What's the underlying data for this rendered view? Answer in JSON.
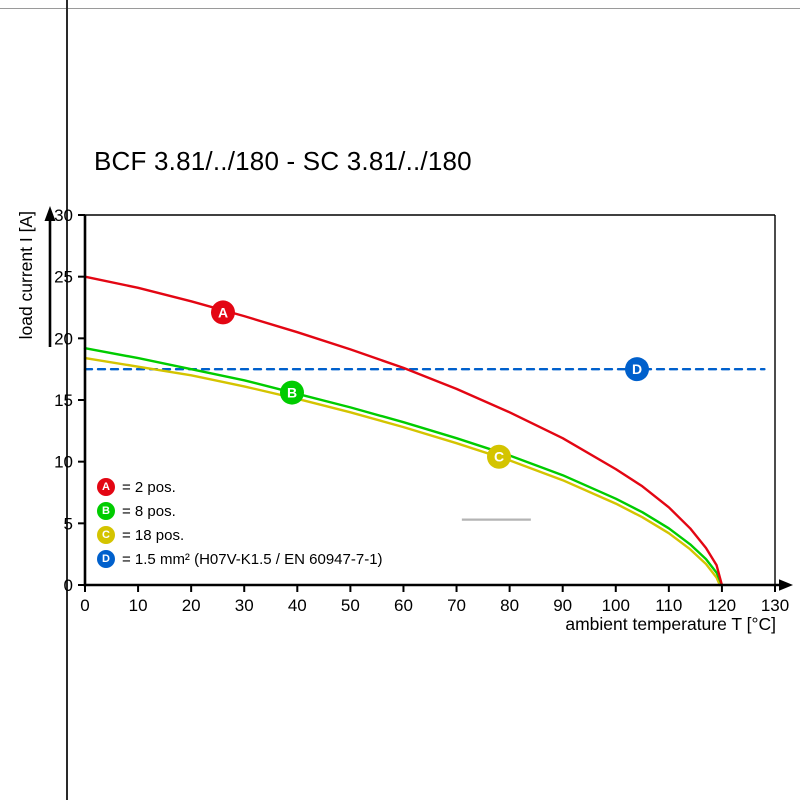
{
  "chart_data": {
    "type": "line",
    "title": "BCF 3.81/../180 - SC 3.81/../180",
    "xlabel": "ambient temperature T [°C]",
    "ylabel": "load current I [A]",
    "xlim": [
      0,
      130
    ],
    "ylim": [
      0,
      30
    ],
    "xticks": [
      0,
      10,
      20,
      30,
      40,
      50,
      60,
      70,
      80,
      90,
      100,
      110,
      120,
      130
    ],
    "yticks": [
      0,
      5,
      10,
      15,
      20,
      25,
      30
    ],
    "grid": false,
    "legend_position": "lower-left",
    "series": [
      {
        "name": "A",
        "legend_label": "= 2 pos.",
        "color": "#e30613",
        "line_style": "solid",
        "marker": {
          "t": 26,
          "i": 22.1
        },
        "points": [
          [
            0,
            25.0
          ],
          [
            10,
            24.1
          ],
          [
            20,
            23.0
          ],
          [
            30,
            21.8
          ],
          [
            40,
            20.5
          ],
          [
            50,
            19.1
          ],
          [
            60,
            17.6
          ],
          [
            70,
            15.9
          ],
          [
            80,
            14.0
          ],
          [
            90,
            11.9
          ],
          [
            100,
            9.4
          ],
          [
            105,
            8.0
          ],
          [
            110,
            6.3
          ],
          [
            114,
            4.6
          ],
          [
            117,
            3.0
          ],
          [
            119,
            1.6
          ],
          [
            120,
            0
          ]
        ]
      },
      {
        "name": "B",
        "legend_label": "= 8 pos.",
        "color": "#00cc00",
        "line_style": "solid",
        "marker": {
          "t": 39,
          "i": 15.6
        },
        "points": [
          [
            0,
            19.2
          ],
          [
            10,
            18.4
          ],
          [
            20,
            17.5
          ],
          [
            30,
            16.6
          ],
          [
            40,
            15.5
          ],
          [
            50,
            14.4
          ],
          [
            60,
            13.2
          ],
          [
            70,
            11.9
          ],
          [
            80,
            10.5
          ],
          [
            90,
            8.9
          ],
          [
            100,
            7.0
          ],
          [
            105,
            5.9
          ],
          [
            110,
            4.6
          ],
          [
            114,
            3.3
          ],
          [
            117,
            2.1
          ],
          [
            119,
            1.0
          ],
          [
            120,
            0
          ]
        ]
      },
      {
        "name": "C",
        "legend_label": "= 18 pos.",
        "color": "#d4c400",
        "line_style": "solid",
        "marker": {
          "t": 78,
          "i": 10.4
        },
        "points": [
          [
            0,
            18.4
          ],
          [
            10,
            17.7
          ],
          [
            20,
            17.0
          ],
          [
            30,
            16.1
          ],
          [
            40,
            15.1
          ],
          [
            50,
            14.0
          ],
          [
            60,
            12.8
          ],
          [
            70,
            11.5
          ],
          [
            80,
            10.1
          ],
          [
            90,
            8.5
          ],
          [
            100,
            6.6
          ],
          [
            105,
            5.5
          ],
          [
            110,
            4.2
          ],
          [
            114,
            2.9
          ],
          [
            117,
            1.7
          ],
          [
            119,
            0.6
          ],
          [
            119.6,
            0
          ]
        ]
      },
      {
        "name": "D",
        "legend_label": "= 1.5 mm² (H07V-K1.5 / EN 60947-7-1)",
        "color": "#0060cc",
        "line_style": "dashed",
        "marker": {
          "t": 104,
          "i": 17.5
        },
        "points": [
          [
            0,
            17.5
          ],
          [
            128,
            17.5
          ]
        ]
      }
    ],
    "extra_segment": {
      "color": "#b4b4b4",
      "points": [
        [
          71,
          5.3
        ],
        [
          84,
          5.3
        ]
      ]
    }
  }
}
